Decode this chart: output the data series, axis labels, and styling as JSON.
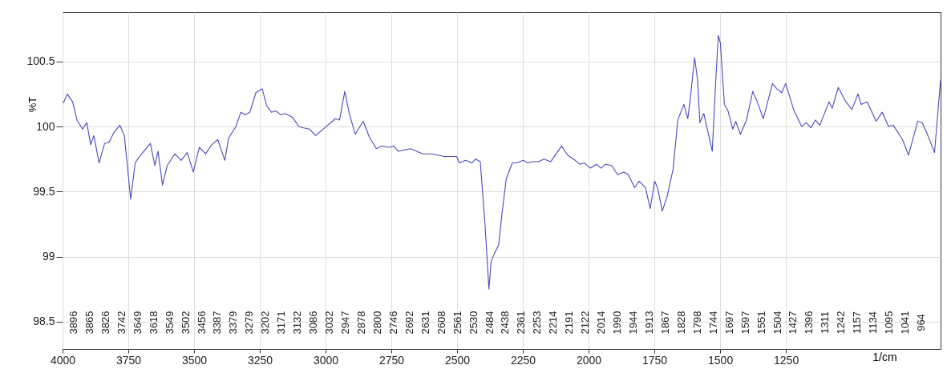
{
  "chart_data": {
    "type": "line",
    "xlabel": "1/cm",
    "ylabel": "%T",
    "xlim": [
      4000,
      662
    ],
    "xticks": [
      4000,
      3750,
      3500,
      3250,
      3000,
      2750,
      2500,
      2250,
      2000,
      1750,
      1500,
      1250
    ],
    "ylim": [
      98.29,
      100.88
    ],
    "yticks": [
      98.5,
      99,
      99.5,
      100,
      100.5
    ],
    "grid": true,
    "series": [
      {
        "color": "#4a4ac0",
        "x": [
          3997,
          3982,
          3962,
          3945,
          3924,
          3908,
          3893,
          3881,
          3861,
          3840,
          3823,
          3803,
          3782,
          3765,
          3741,
          3724,
          3707,
          3666,
          3649,
          3637,
          3620,
          3602,
          3573,
          3549,
          3526,
          3503,
          3480,
          3456,
          3433,
          3410,
          3383,
          3369,
          3341,
          3322,
          3305,
          3288,
          3265,
          3241,
          3224,
          3206,
          3189,
          3171,
          3154,
          3125,
          3102,
          3084,
          3061,
          3038,
          3003,
          2963,
          2947,
          2927,
          2910,
          2887,
          2857,
          2834,
          2807,
          2788,
          2758,
          2741,
          2724,
          2677,
          2630,
          2595,
          2549,
          2502,
          2491,
          2468,
          2444,
          2429,
          2412,
          2394,
          2379,
          2371,
          2359,
          2342,
          2330,
          2313,
          2290,
          2273,
          2249,
          2231,
          2214,
          2191,
          2170,
          2144,
          2103,
          2080,
          2051,
          2034,
          2017,
          1993,
          1970,
          1953,
          1935,
          1912,
          1890,
          1866,
          1849,
          1825,
          1808,
          1784,
          1766,
          1749,
          1738,
          1720,
          1702,
          1679,
          1661,
          1638,
          1623,
          1615,
          1597,
          1586,
          1577,
          1562,
          1551,
          1530,
          1516,
          1507,
          1499,
          1484,
          1470,
          1452,
          1441,
          1423,
          1400,
          1376,
          1359,
          1336,
          1301,
          1285,
          1266,
          1251,
          1219,
          1190,
          1173,
          1155,
          1138,
          1121,
          1086,
          1074,
          1051,
          1022,
          999,
          976,
          964,
          941,
          907,
          884,
          860,
          842,
          807,
          784,
          749,
          732,
          714,
          685,
          662
        ],
        "values": [
          100.18,
          100.25,
          100.19,
          100.05,
          99.98,
          100.03,
          99.86,
          99.93,
          99.72,
          99.87,
          99.88,
          99.96,
          100.01,
          99.93,
          99.44,
          99.72,
          99.77,
          99.87,
          99.7,
          99.81,
          99.55,
          99.7,
          99.79,
          99.74,
          99.8,
          99.65,
          99.84,
          99.79,
          99.86,
          99.9,
          99.74,
          99.91,
          100.0,
          100.11,
          100.09,
          100.11,
          100.26,
          100.29,
          100.16,
          100.11,
          100.12,
          100.09,
          100.1,
          100.07,
          100.0,
          99.99,
          99.98,
          99.93,
          99.99,
          100.06,
          100.05,
          100.27,
          100.1,
          99.94,
          100.04,
          99.92,
          99.83,
          99.85,
          99.84,
          99.85,
          99.81,
          99.83,
          99.79,
          99.79,
          99.77,
          99.77,
          99.72,
          99.74,
          99.72,
          99.75,
          99.73,
          99.25,
          98.75,
          98.96,
          99.02,
          99.09,
          99.32,
          99.6,
          99.72,
          99.72,
          99.74,
          99.72,
          99.73,
          99.73,
          99.75,
          99.73,
          99.85,
          99.78,
          99.74,
          99.71,
          99.72,
          99.68,
          99.71,
          99.68,
          99.71,
          99.7,
          99.63,
          99.65,
          99.63,
          99.53,
          99.58,
          99.53,
          99.37,
          99.58,
          99.53,
          99.35,
          99.46,
          99.67,
          100.05,
          100.17,
          100.06,
          100.19,
          100.53,
          100.36,
          100.03,
          100.1,
          100.0,
          99.81,
          100.38,
          100.7,
          100.64,
          100.17,
          100.12,
          99.98,
          100.04,
          99.94,
          100.05,
          100.27,
          100.19,
          100.06,
          100.33,
          100.29,
          100.26,
          100.33,
          100.12,
          100.0,
          100.03,
          99.99,
          100.05,
          100.01,
          100.19,
          100.14,
          100.3,
          100.19,
          100.13,
          100.25,
          100.17,
          100.19,
          100.04,
          100.11,
          100.0,
          100.01,
          99.9,
          99.78,
          100.04,
          100.03,
          99.95,
          99.8,
          100.36
        ]
      }
    ],
    "annotations": [
      "3896",
      "3865",
      "3826",
      "3742",
      "3649",
      "3618",
      "3549",
      "3502",
      "3456",
      "3387",
      "3379",
      "3279",
      "3202",
      "3171",
      "3132",
      "3086",
      "3032",
      "2947",
      "2878",
      "2800",
      "2746",
      "2692",
      "2631",
      "2608",
      "2561",
      "2530",
      "2484",
      "2438",
      "2361",
      "2253",
      "2214",
      "2191",
      "2122",
      "2014",
      "1990",
      "1944",
      "1913",
      "1867",
      "1828",
      "1798",
      "1744",
      "1697",
      "1597",
      "1551",
      "1504",
      "1427",
      "1396",
      "1311",
      "1242",
      "1157",
      "1134",
      "1095",
      "1041",
      "964"
    ]
  }
}
